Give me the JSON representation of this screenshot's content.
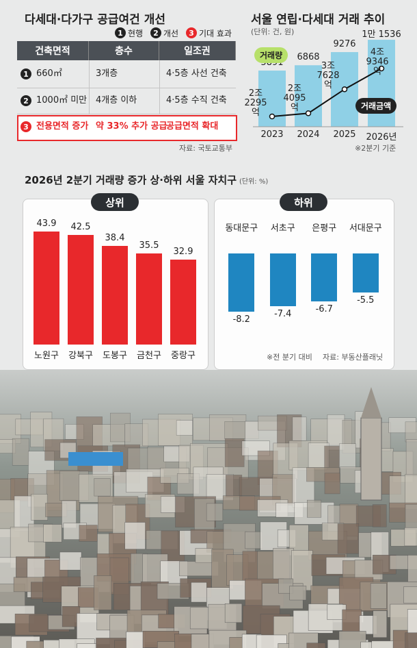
{
  "table": {
    "title": "다세대·다가구 공급여건 개선",
    "legend": [
      {
        "marker": "1",
        "label": "현행"
      },
      {
        "marker": "2",
        "label": "개선"
      },
      {
        "marker": "3",
        "label": "기대 효과"
      }
    ],
    "headers": [
      "건축면적",
      "층수",
      "일조권"
    ],
    "rows": [
      {
        "marker": "1",
        "cells": [
          "660㎡",
          "3개층",
          "4·5층 사선 건축"
        ]
      },
      {
        "marker": "2",
        "cells": [
          "1000㎡ 미만",
          "4개층 이하",
          "4·5층 수직 건축"
        ]
      },
      {
        "marker": "3",
        "cells": [
          "전용면적 증가",
          "약 33% 추가 공급",
          "공급면적 확대"
        ]
      }
    ],
    "source": "자료: 국토교통부"
  },
  "chart_data": [
    {
      "type": "combo",
      "title": "서울 연립·다세대 거래 추이",
      "subtitle": "(단위: 건, 원)",
      "categories": [
        "2023",
        "2024",
        "2025",
        "2026년"
      ],
      "series": [
        {
          "name": "거래량",
          "type": "bar",
          "color": "#8fd0e6",
          "values": [
            5891,
            6868,
            9276,
            11536
          ],
          "value_labels": [
            "5891",
            "6868",
            "9276",
            "1만 1536"
          ]
        },
        {
          "name": "거래금액",
          "type": "line",
          "color": "#111111",
          "values": [
            22295,
            24095,
            37628,
            49346
          ],
          "value_labels": [
            "2조\n2295억",
            "2조\n4095억",
            "3조\n7628억",
            "4조\n9346억"
          ]
        }
      ],
      "note": "※2분기 기준"
    },
    {
      "type": "bar",
      "title": "2026년 2분기 거래량 증가 상·하위 서울 자치구",
      "subtitle": "(단위: %)",
      "label": "상위",
      "color": "#e8282b",
      "categories": [
        "노원구",
        "강북구",
        "도봉구",
        "금천구",
        "중랑구"
      ],
      "values": [
        43.9,
        42.5,
        38.4,
        35.5,
        32.9
      ]
    },
    {
      "type": "bar",
      "label": "하위",
      "color": "#1f86c1",
      "categories": [
        "동대문구",
        "서초구",
        "은평구",
        "서대문구"
      ],
      "values": [
        -8.2,
        -7.4,
        -6.7,
        -5.5
      ],
      "notes": [
        "※전 분기 대비",
        "자료: 부동산플래닛"
      ]
    }
  ]
}
